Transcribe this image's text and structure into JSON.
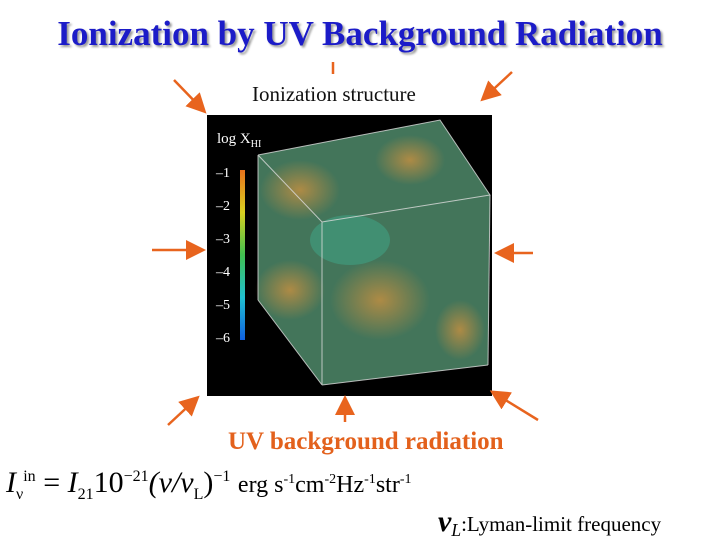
{
  "title": "Ionization by UV Background Radiation",
  "figure": {
    "caption_top": "Ionization structure",
    "colorbar": {
      "label": "log X",
      "label_sub": "HI",
      "ticks": [
        "–1",
        "–2",
        "–3",
        "–4",
        "–5",
        "–6"
      ]
    }
  },
  "caption_bottom": "UV background radiation",
  "formula": {
    "lhs": "I",
    "lhs_sub": "ν",
    "lhs_sup": "in",
    "eq": "=",
    "coef": "I",
    "coef_sub": "21",
    "pow": "10",
    "pow_sup": "−21",
    "ratio": "(ν/ν",
    "ratio_sub": "L",
    "ratio_close": ")",
    "ratio_sup": "−1",
    "units": [
      {
        "base": "erg s",
        "sup": "-1"
      },
      {
        "base": "cm",
        "sup": "-2"
      },
      {
        "base": "Hz",
        "sup": "-1"
      },
      {
        "base": "str",
        "sup": "-1"
      }
    ]
  },
  "note": {
    "symbol": "ν",
    "sub": "L",
    "text": ":Lyman-limit frequency"
  }
}
